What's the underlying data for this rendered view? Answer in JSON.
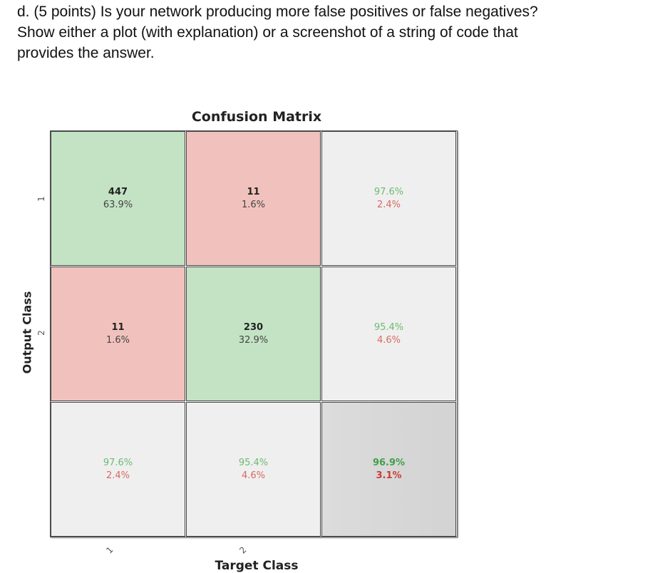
{
  "question": {
    "line1": "d. (5 points) Is your network producing more false positives or false negatives?",
    "line2": "Show either a plot (with explanation) or a screenshot of a string of code that",
    "line3": "provides the answer."
  },
  "chart_data": {
    "type": "heatmap",
    "title": "Confusion Matrix",
    "xlabel": "Target Class",
    "ylabel": "Output Class",
    "x_ticks": [
      "1",
      "2"
    ],
    "y_ticks": [
      "1",
      "2"
    ],
    "colors": {
      "correct": "#c3e3c4",
      "incorrect": "#f1c2bd",
      "summary": "#efefef",
      "overall": "#d6d6d6",
      "pct_good": "#6dbb72",
      "pct_bad": "#d86a60"
    },
    "rows": [
      [
        {
          "count": "447",
          "pct": "63.9%"
        },
        {
          "count": "11",
          "pct": "1.6%"
        },
        {
          "good": "97.6%",
          "bad": "2.4%"
        }
      ],
      [
        {
          "count": "11",
          "pct": "1.6%"
        },
        {
          "count": "230",
          "pct": "32.9%"
        },
        {
          "good": "95.4%",
          "bad": "4.6%"
        }
      ],
      [
        {
          "good": "97.6%",
          "bad": "2.4%"
        },
        {
          "good": "95.4%",
          "bad": "4.6%"
        },
        {
          "good": "96.9%",
          "bad": "3.1%"
        }
      ]
    ]
  }
}
